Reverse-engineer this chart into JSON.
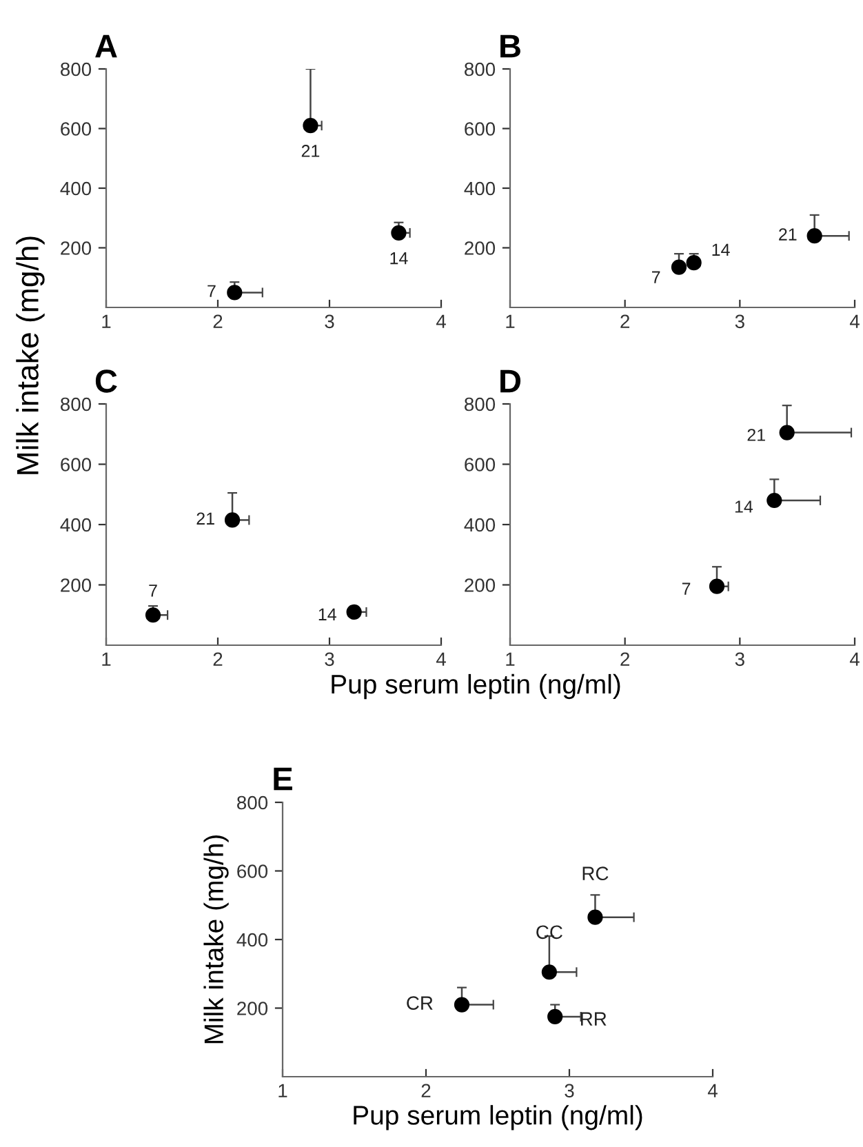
{
  "chart_data": [
    {
      "type": "scatter",
      "title": "A",
      "ylabel": "Milk intake (mg/h)",
      "xlim": [
        1,
        4
      ],
      "ylim": [
        0,
        800
      ],
      "xticks": [
        1,
        2,
        3,
        4
      ],
      "yticks": [
        200,
        400,
        600,
        800
      ],
      "marker": "circle",
      "grid": false,
      "series": [
        {
          "color": "#000000",
          "x": [
            2.15,
            2.83,
            3.62
          ],
          "values": [
            50,
            610,
            250
          ],
          "errors": [
            [
              50,
              85
            ],
            [
              610,
              800
            ],
            [
              250,
              285
            ]
          ],
          "xerrors": [
            [
              2.15,
              2.4
            ],
            [
              2.83,
              2.93
            ],
            [
              3.62,
              3.72
            ]
          ]
        }
      ],
      "annotations": [
        {
          "text": "7",
          "x": 2.15,
          "y": 50
        },
        {
          "text": "21",
          "x": 2.83,
          "y": 610
        },
        {
          "text": "14",
          "x": 3.62,
          "y": 250
        }
      ]
    },
    {
      "type": "scatter",
      "title": "B",
      "xlim": [
        1,
        4
      ],
      "ylim": [
        0,
        800
      ],
      "xticks": [
        1,
        2,
        3,
        4
      ],
      "yticks": [
        200,
        400,
        600,
        800
      ],
      "marker": "circle",
      "grid": false,
      "series": [
        {
          "color": "#000000",
          "x": [
            2.47,
            2.6,
            3.65
          ],
          "values": [
            135,
            150,
            240
          ],
          "errors": [
            [
              135,
              180
            ],
            [
              150,
              180
            ],
            [
              240,
              310
            ]
          ],
          "xerrors": [
            null,
            null,
            [
              3.65,
              3.95
            ]
          ]
        }
      ],
      "annotations": [
        {
          "text": "7",
          "x": 2.47,
          "y": 135
        },
        {
          "text": "14",
          "x": 2.6,
          "y": 150
        },
        {
          "text": "21",
          "x": 3.65,
          "y": 240
        }
      ]
    },
    {
      "type": "scatter",
      "title": "C",
      "xlabel": "Pup serum leptin (ng/ml)",
      "xlim": [
        1,
        4
      ],
      "ylim": [
        0,
        800
      ],
      "xticks": [
        1,
        2,
        3,
        4
      ],
      "yticks": [
        200,
        400,
        600,
        800
      ],
      "marker": "circle",
      "grid": false,
      "series": [
        {
          "color": "#000000",
          "x": [
            1.42,
            2.13,
            3.22
          ],
          "values": [
            100,
            415,
            110
          ],
          "errors": [
            [
              100,
              130
            ],
            [
              415,
              505
            ],
            null
          ],
          "xerrors": [
            [
              1.42,
              1.55
            ],
            [
              2.13,
              2.28
            ],
            [
              3.22,
              3.33
            ]
          ]
        }
      ],
      "annotations": [
        {
          "text": "7",
          "x": 1.42,
          "y": 100
        },
        {
          "text": "21",
          "x": 2.13,
          "y": 415
        },
        {
          "text": "14",
          "x": 3.22,
          "y": 110
        }
      ]
    },
    {
      "type": "scatter",
      "title": "D",
      "xlim": [
        1,
        4
      ],
      "ylim": [
        0,
        800
      ],
      "xticks": [
        1,
        2,
        3,
        4
      ],
      "yticks": [
        200,
        400,
        600,
        800
      ],
      "marker": "circle",
      "grid": false,
      "series": [
        {
          "color": "#000000",
          "x": [
            2.8,
            3.3,
            3.41
          ],
          "values": [
            195,
            480,
            705
          ],
          "errors": [
            [
              195,
              260
            ],
            [
              480,
              550
            ],
            [
              705,
              795
            ]
          ],
          "xerrors": [
            [
              2.8,
              2.9
            ],
            [
              3.3,
              3.7
            ],
            [
              3.41,
              3.97
            ]
          ]
        }
      ],
      "annotations": [
        {
          "text": "7",
          "x": 2.8,
          "y": 195
        },
        {
          "text": "14",
          "x": 3.3,
          "y": 480
        },
        {
          "text": "21",
          "x": 3.41,
          "y": 705
        }
      ]
    },
    {
      "type": "scatter",
      "title": "E",
      "xlabel": "Pup serum leptin (ng/ml)",
      "ylabel": "Milk intake (mg/h)",
      "xlim": [
        1,
        4
      ],
      "ylim": [
        0,
        800
      ],
      "xticks": [
        1,
        2,
        3,
        4
      ],
      "yticks": [
        200,
        400,
        600,
        800
      ],
      "marker": "circle",
      "grid": false,
      "series": [
        {
          "color": "#000000",
          "x": [
            2.25,
            2.86,
            3.18,
            2.9
          ],
          "values": [
            210,
            305,
            465,
            175
          ],
          "errors": [
            [
              210,
              260
            ],
            [
              305,
              410
            ],
            [
              465,
              530
            ],
            [
              175,
              210
            ]
          ],
          "xerrors": [
            [
              2.25,
              2.47
            ],
            [
              2.86,
              3.05
            ],
            [
              3.18,
              3.45
            ],
            [
              2.9,
              3.08
            ]
          ]
        }
      ],
      "annotations": [
        {
          "text": "CR",
          "x": 2.25,
          "y": 210
        },
        {
          "text": "CC",
          "x": 2.86,
          "y": 305
        },
        {
          "text": "RC",
          "x": 3.18,
          "y": 465
        },
        {
          "text": "RR",
          "x": 2.9,
          "y": 175
        }
      ]
    }
  ]
}
